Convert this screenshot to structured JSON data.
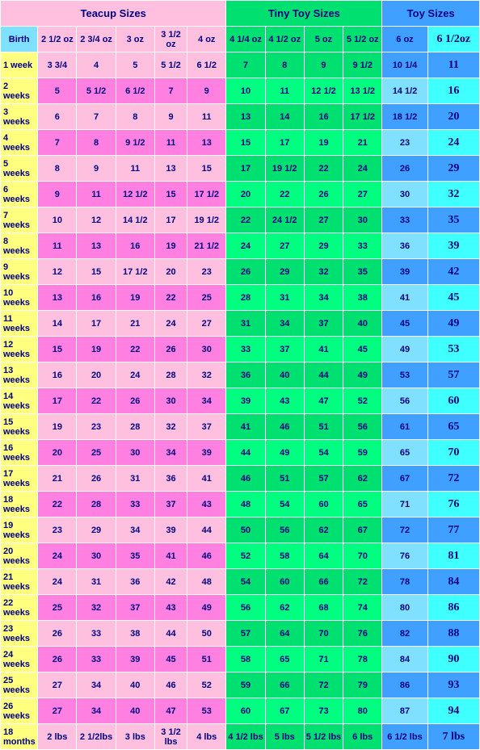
{
  "groups": [
    {
      "label": "Teacup Sizes",
      "span": 6,
      "cls": "grp-teacup"
    },
    {
      "label": "Tiny Toy Sizes",
      "span": 4,
      "cls": "grp-tiny"
    },
    {
      "label": "Toy Sizes",
      "span": 2,
      "cls": "grp-toy"
    }
  ],
  "columns": [
    {
      "label": "Birth",
      "cls": "h-birth",
      "fam": "week"
    },
    {
      "label": "2 1/2 oz",
      "cls": "h-teacup",
      "fam": "teacup"
    },
    {
      "label": "2 3/4 oz",
      "cls": "h-teacup",
      "fam": "teacup"
    },
    {
      "label": "3 oz",
      "cls": "h-teacup",
      "fam": "teacup"
    },
    {
      "label": "3 1/2 oz",
      "cls": "h-teacup",
      "fam": "teacup"
    },
    {
      "label": "4 oz",
      "cls": "h-teacup",
      "fam": "teacup"
    },
    {
      "label": "4 1/4 oz",
      "cls": "h-tiny",
      "fam": "tiny"
    },
    {
      "label": "4 1/2 oz",
      "cls": "h-tiny",
      "fam": "tiny"
    },
    {
      "label": "5 oz",
      "cls": "h-tiny",
      "fam": "tiny"
    },
    {
      "label": "5 1/2 oz",
      "cls": "h-tiny",
      "fam": "tiny"
    },
    {
      "label": "6 oz",
      "cls": "h-toy6",
      "fam": "toy6"
    },
    {
      "label": "6 1/2oz",
      "cls": "h-toy65",
      "fam": "toy65"
    }
  ],
  "rows": [
    {
      "label": "1 week",
      "v": [
        "3 3/4",
        "4",
        "5",
        "5 1/2",
        "6 1/2",
        "7",
        "8",
        "9",
        "9 1/2",
        "10 1/4",
        "11"
      ]
    },
    {
      "label": "2 weeks",
      "v": [
        "5",
        "5 1/2",
        "6 1/2",
        "7",
        "9",
        "10",
        "11",
        "12 1/2",
        "13 1/2",
        "14 1/2",
        "16"
      ]
    },
    {
      "label": "3 weeks",
      "v": [
        "6",
        "7",
        "8",
        "9",
        "11",
        "13",
        "14",
        "16",
        "17 1/2",
        "18 1/2",
        "20"
      ]
    },
    {
      "label": "4 weeks",
      "v": [
        "7",
        "8",
        "9 1/2",
        "11",
        "13",
        "15",
        "17",
        "19",
        "21",
        "23",
        "24"
      ]
    },
    {
      "label": "5 weeks",
      "v": [
        "8",
        "9",
        "11",
        "13",
        "15",
        "17",
        "19 1/2",
        "22",
        "24",
        "26",
        "29"
      ]
    },
    {
      "label": "6 weeks",
      "v": [
        "9",
        "11",
        "12 1/2",
        "15",
        "17 1/2",
        "20",
        "22",
        "26",
        "27",
        "30",
        "32"
      ]
    },
    {
      "label": "7 weeks",
      "v": [
        "10",
        "12",
        "14 1/2",
        "17",
        "19 1/2",
        "22",
        "24 1/2",
        "27",
        "30",
        "33",
        "35"
      ]
    },
    {
      "label": "8 weeks",
      "v": [
        "11",
        "13",
        "16",
        "19",
        "21 1/2",
        "24",
        "27",
        "29",
        "33",
        "36",
        "39"
      ]
    },
    {
      "label": "9 weeks",
      "v": [
        "12",
        "15",
        "17 1/2",
        "20",
        "23",
        "26",
        "29",
        "32",
        "35",
        "39",
        "42"
      ]
    },
    {
      "label": "10 weeks",
      "v": [
        "13",
        "16",
        "19",
        "22",
        "25",
        "28",
        "31",
        "34",
        "38",
        "41",
        "45"
      ]
    },
    {
      "label": "11 weeks",
      "v": [
        "14",
        "17",
        "21",
        "24",
        "27",
        "31",
        "34",
        "37",
        "40",
        "45",
        "49"
      ]
    },
    {
      "label": "12 weeks",
      "v": [
        "15",
        "19",
        "22",
        "26",
        "30",
        "33",
        "37",
        "41",
        "45",
        "49",
        "53"
      ]
    },
    {
      "label": "13 weeks",
      "v": [
        "16",
        "20",
        "24",
        "28",
        "32",
        "36",
        "40",
        "44",
        "49",
        "53",
        "57"
      ]
    },
    {
      "label": "14 weeks",
      "v": [
        "17",
        "22",
        "26",
        "30",
        "34",
        "39",
        "43",
        "47",
        "52",
        "56",
        "60"
      ]
    },
    {
      "label": "15 weeks",
      "v": [
        "19",
        "23",
        "28",
        "32",
        "37",
        "41",
        "46",
        "51",
        "56",
        "61",
        "65"
      ]
    },
    {
      "label": "16 weeks",
      "v": [
        "20",
        "25",
        "30",
        "34",
        "39",
        "44",
        "49",
        "54",
        "59",
        "65",
        "70"
      ]
    },
    {
      "label": "17 weeks",
      "v": [
        "21",
        "26",
        "31",
        "36",
        "41",
        "46",
        "51",
        "57",
        "62",
        "67",
        "72"
      ]
    },
    {
      "label": "18 weeks",
      "v": [
        "22",
        "28",
        "33",
        "37",
        "43",
        "48",
        "54",
        "60",
        "65",
        "71",
        "76"
      ]
    },
    {
      "label": "19 weeks",
      "v": [
        "23",
        "29",
        "34",
        "39",
        "44",
        "50",
        "56",
        "62",
        "67",
        "72",
        "77"
      ]
    },
    {
      "label": "20 weeks",
      "v": [
        "24",
        "30",
        "35",
        "41",
        "46",
        "52",
        "58",
        "64",
        "70",
        "76",
        "81"
      ]
    },
    {
      "label": "21 weeks",
      "v": [
        "24",
        "31",
        "36",
        "42",
        "48",
        "54",
        "60",
        "66",
        "72",
        "78",
        "84"
      ]
    },
    {
      "label": "22 weeks",
      "v": [
        "25",
        "32",
        "37",
        "43",
        "49",
        "56",
        "62",
        "68",
        "74",
        "80",
        "86"
      ]
    },
    {
      "label": "23 weeks",
      "v": [
        "26",
        "33",
        "38",
        "44",
        "50",
        "57",
        "64",
        "70",
        "76",
        "82",
        "88"
      ]
    },
    {
      "label": "24 weeks",
      "v": [
        "26",
        "33",
        "39",
        "45",
        "51",
        "58",
        "65",
        "71",
        "78",
        "84",
        "90"
      ]
    },
    {
      "label": "25 weeks",
      "v": [
        "27",
        "34",
        "40",
        "46",
        "52",
        "59",
        "66",
        "72",
        "79",
        "86",
        "93"
      ]
    },
    {
      "label": "26 weeks",
      "v": [
        "27",
        "34",
        "40",
        "47",
        "53",
        "60",
        "67",
        "73",
        "80",
        "87",
        "94"
      ]
    },
    {
      "label": "18 months",
      "v": [
        "2 lbs",
        "2 1/2lbs",
        "3 lbs",
        "3 1/2 lbs",
        "4 lbs",
        "4 1/2 lbs",
        "5 lbs",
        "5 1/2 lbs",
        "6 lbs",
        "6 1/2 lbs",
        "7 lbs"
      ]
    }
  ],
  "colors": {
    "week": "#ffff80",
    "teacupA": "#ffc0e0",
    "teacupB": "#ff80e0",
    "tinyA": "#00e070",
    "tinyB": "#00ff80",
    "toy6A": "#40a0ff",
    "toy6B": "#80e0ff",
    "toy65A": "#40a0ff",
    "toy65B": "#40ffff",
    "text": "#000080"
  }
}
